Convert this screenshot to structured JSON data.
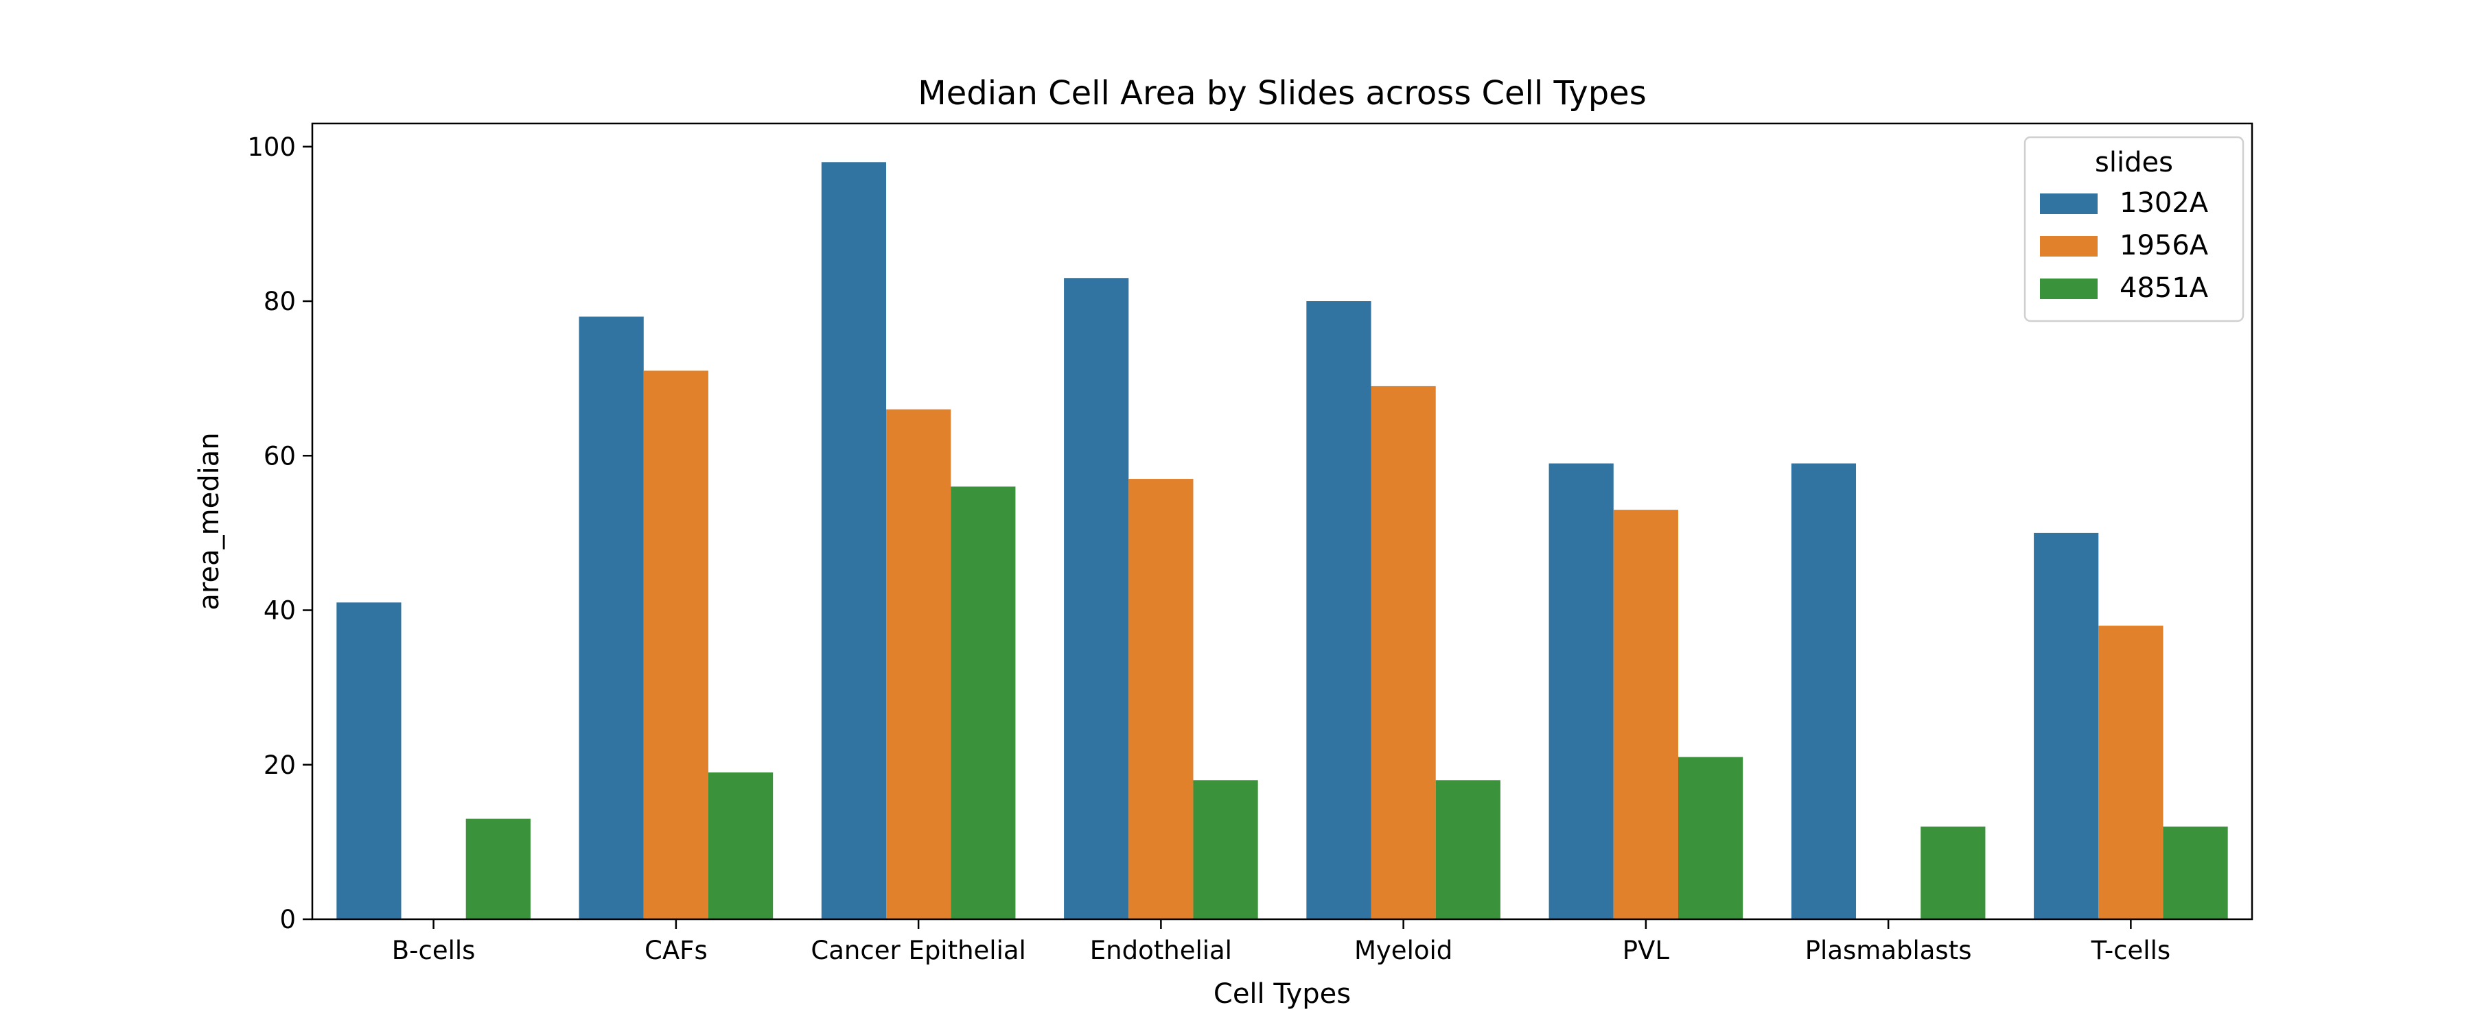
{
  "chart_data": {
    "type": "bar",
    "title": "Median Cell Area by Slides across Cell Types",
    "xlabel": "Cell Types",
    "ylabel": "area_median",
    "categories": [
      "B-cells",
      "CAFs",
      "Cancer Epithelial",
      "Endothelial",
      "Myeloid",
      "PVL",
      "Plasmablasts",
      "T-cells"
    ],
    "series": [
      {
        "name": "1302A",
        "color": "#3274a1",
        "values": [
          41,
          78,
          98,
          83,
          80,
          59,
          59,
          50
        ]
      },
      {
        "name": "1956A",
        "color": "#e1812c",
        "values": [
          null,
          71,
          66,
          57,
          69,
          53,
          null,
          38
        ]
      },
      {
        "name": "4851A",
        "color": "#3a923a",
        "values": [
          13,
          19,
          56,
          18,
          18,
          21,
          12,
          12
        ]
      }
    ],
    "ylim": [
      0,
      103
    ],
    "yticks": [
      0,
      20,
      40,
      60,
      80,
      100
    ],
    "legend": {
      "title": "slides",
      "position": "top-right"
    },
    "grid": false
  }
}
